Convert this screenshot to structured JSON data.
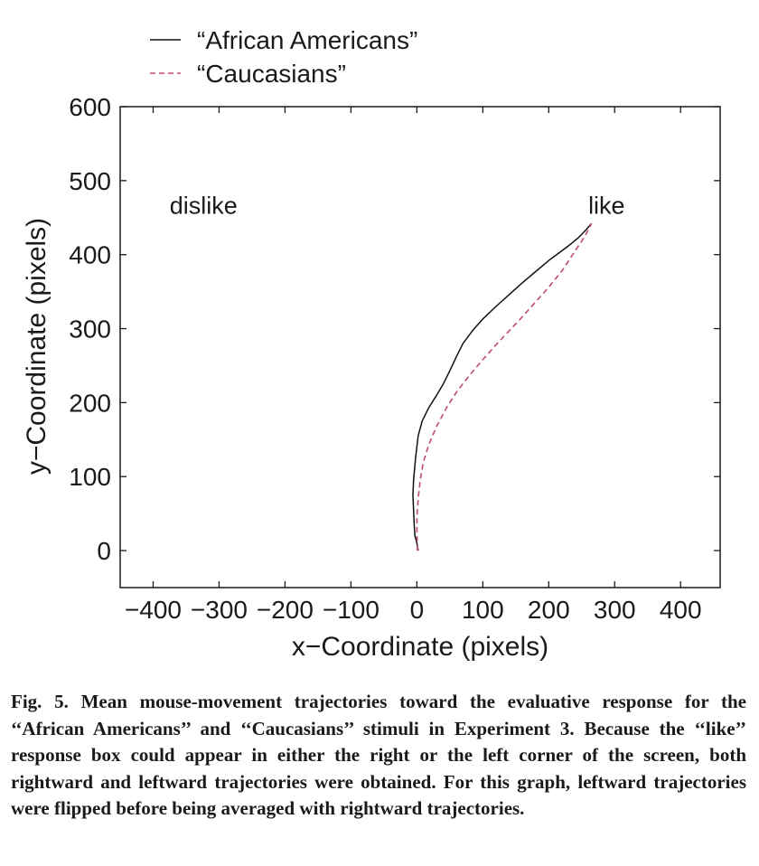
{
  "chart_data": {
    "type": "line",
    "xlabel": "x−Coordinate (pixels)",
    "ylabel": "y−Coordinate (pixels)",
    "xlim": [
      -450,
      460
    ],
    "ylim": [
      -50,
      600
    ],
    "xticks": [
      -400,
      -300,
      -200,
      -100,
      0,
      100,
      200,
      300,
      400
    ],
    "xtick_labels": [
      "−400",
      "−300",
      "−200",
      "−100",
      "0",
      "100",
      "200",
      "300",
      "400"
    ],
    "yticks": [
      0,
      100,
      200,
      300,
      400,
      500,
      600
    ],
    "ytick_labels": [
      "0",
      "100",
      "200",
      "300",
      "400",
      "500",
      "600"
    ],
    "legend_position": "top-left, above plot",
    "annotations": [
      {
        "text": "dislike",
        "x": -375,
        "y": 465
      },
      {
        "text": "like",
        "x": 260,
        "y": 465
      }
    ],
    "series": [
      {
        "name": "“African Americans”",
        "style": "solid",
        "color": "#111111",
        "x": [
          2,
          0,
          -3,
          -4,
          -5,
          -6,
          -5,
          -2,
          2,
          8,
          18,
          30,
          40,
          50,
          60,
          70,
          85,
          100,
          120,
          140,
          160,
          180,
          200,
          215,
          230,
          245,
          255,
          265
        ],
        "y": [
          0,
          10,
          20,
          35,
          55,
          75,
          95,
          125,
          155,
          175,
          193,
          210,
          225,
          243,
          262,
          280,
          298,
          313,
          330,
          346,
          362,
          377,
          392,
          402,
          412,
          423,
          432,
          442
        ]
      },
      {
        "name": "“Caucasians”",
        "style": "dashed",
        "color": "#c04a6e",
        "x": [
          1,
          0,
          0,
          2,
          5,
          10,
          18,
          30,
          45,
          60,
          80,
          100,
          120,
          140,
          160,
          180,
          200,
          220,
          240,
          255,
          265
        ],
        "y": [
          0,
          20,
          45,
          70,
          95,
          120,
          143,
          168,
          193,
          214,
          237,
          258,
          278,
          297,
          316,
          336,
          356,
          378,
          405,
          425,
          442
        ]
      }
    ]
  },
  "caption": {
    "label": "Fig. 5.",
    "text": " Mean mouse-movement trajectories toward the evaluative response for the ‘‘African Americans’’ and ‘‘Caucasians’’ stimuli in Experiment 3. Because the ‘‘like’’ response box could appear in either the right or the left corner of the screen, both rightward and leftward trajectories were obtained. For this graph, leftward trajectories were flipped before being averaged with rightward trajectories."
  }
}
